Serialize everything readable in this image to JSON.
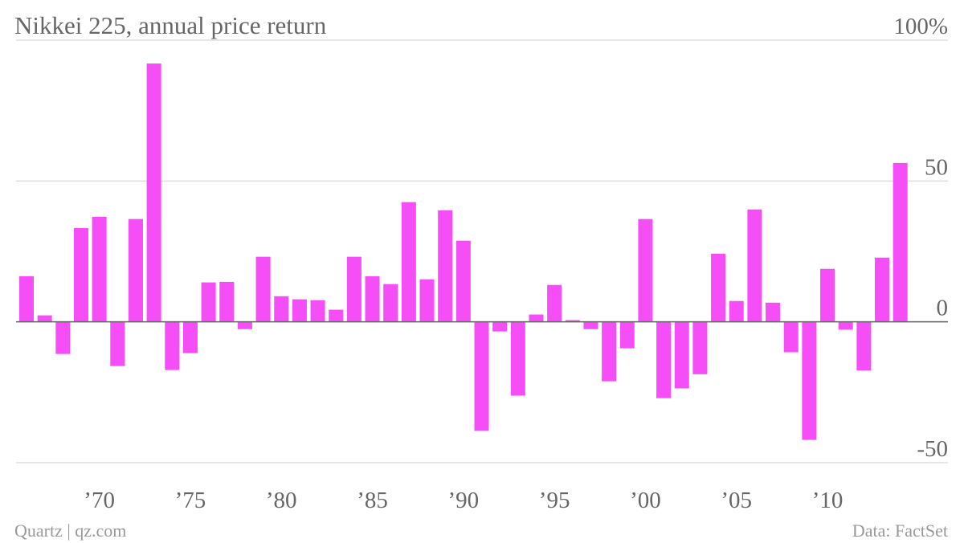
{
  "chart_data": {
    "type": "bar",
    "title": "Nikkei 225, annual price return",
    "source": "Data: FactSet",
    "credit": "Quartz | qz.com",
    "color": "#f64ef6",
    "categories": [
      null,
      null,
      null,
      null,
      "’70",
      null,
      null,
      null,
      null,
      "’75",
      null,
      null,
      null,
      null,
      "’80",
      null,
      null,
      null,
      null,
      "’85",
      null,
      null,
      null,
      null,
      "’90",
      null,
      null,
      null,
      null,
      "’95",
      null,
      null,
      null,
      null,
      "’00",
      null,
      null,
      null,
      null,
      "’05",
      null,
      null,
      null,
      null,
      "’10",
      null,
      null,
      null,
      null
    ],
    "values": [
      16.2,
      2.3,
      -11.4,
      33.3,
      37.3,
      -15.7,
      36.5,
      91.7,
      -17.1,
      -11.1,
      14,
      14.2,
      -2.6,
      23.1,
      9.1,
      8,
      7.7,
      4.3,
      23.1,
      16.2,
      13.4,
      42.5,
      15.1,
      39.6,
      28.8,
      -38.7,
      -3.4,
      -26.2,
      2.6,
      13.1,
      0.6,
      -2.6,
      -21.1,
      -9.4,
      36.5,
      -27.1,
      -23.6,
      -18.6,
      24.2,
      7.4,
      39.9,
      6.8,
      -10.8,
      -41.9,
      18.8,
      -2.8,
      -17.3,
      22.8,
      56.4
    ],
    "ylim": [
      -50,
      100
    ],
    "yticks": [
      -50,
      0,
      50,
      {
        "value": 100,
        "label": "100%"
      }
    ],
    "grid": true
  }
}
